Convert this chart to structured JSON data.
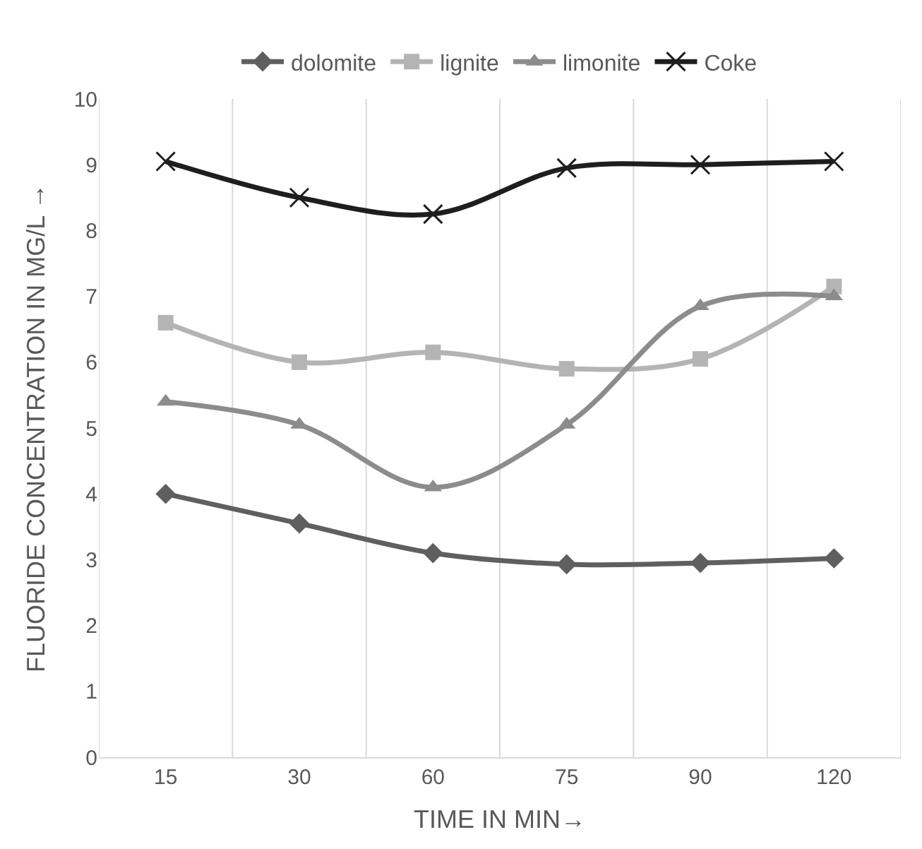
{
  "chart_data": {
    "type": "line",
    "xlabel": "TIME IN MIN→",
    "ylabel": "FLUORIDE CONCENTRATION IN MG/L →",
    "categories": [
      "15",
      "30",
      "60",
      "75",
      "90",
      "120"
    ],
    "series": [
      {
        "name": "dolomite",
        "color": "#5f5f5f",
        "marker": "diamond",
        "values": [
          4.0,
          3.55,
          3.1,
          2.93,
          2.95,
          3.02
        ]
      },
      {
        "name": "lignite",
        "color": "#b4b4b4",
        "marker": "square",
        "values": [
          6.6,
          6.0,
          6.15,
          5.9,
          6.05,
          7.15
        ]
      },
      {
        "name": "limonite",
        "color": "#8c8c8c",
        "marker": "triangle",
        "values": [
          5.4,
          5.05,
          4.1,
          5.05,
          6.85,
          7.0
        ]
      },
      {
        "name": "Coke",
        "color": "#1e1e1e",
        "marker": "cross",
        "values": [
          9.05,
          8.5,
          8.25,
          8.95,
          9.0,
          9.05
        ]
      }
    ],
    "ylim": [
      0,
      10
    ],
    "yticks": [
      0,
      1,
      2,
      3,
      4,
      5,
      6,
      7,
      8,
      9,
      10
    ],
    "grid": "x",
    "legend": "top"
  }
}
